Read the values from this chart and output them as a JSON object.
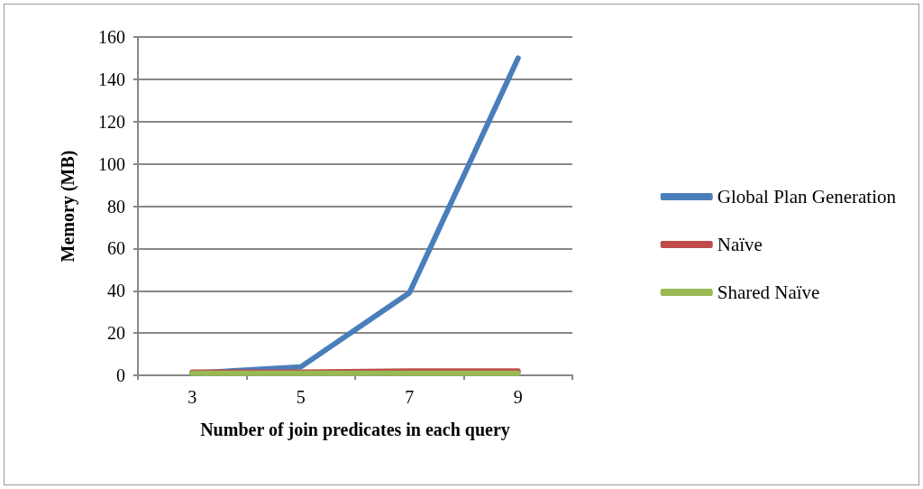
{
  "chart_data": {
    "type": "line",
    "xlabel": "Number of join predicates in each query",
    "ylabel": "Memory (MB)",
    "categories": [
      "3",
      "5",
      "7",
      "9"
    ],
    "series": [
      {
        "name": "Global Plan Generation",
        "color": "#4a7ebb",
        "values": [
          1,
          4,
          39,
          150
        ]
      },
      {
        "name": "Naïve",
        "color": "#be4b48",
        "values": [
          1.5,
          1.5,
          2,
          2
        ]
      },
      {
        "name": "Shared Naïve",
        "color": "#98b954",
        "values": [
          1,
          1,
          1,
          1
        ]
      }
    ],
    "ylim": [
      0,
      160
    ],
    "yticks": [
      0,
      20,
      40,
      60,
      80,
      100,
      120,
      140,
      160
    ],
    "grid": "y",
    "legend": "right",
    "marker": "none",
    "line_style": "solid"
  }
}
